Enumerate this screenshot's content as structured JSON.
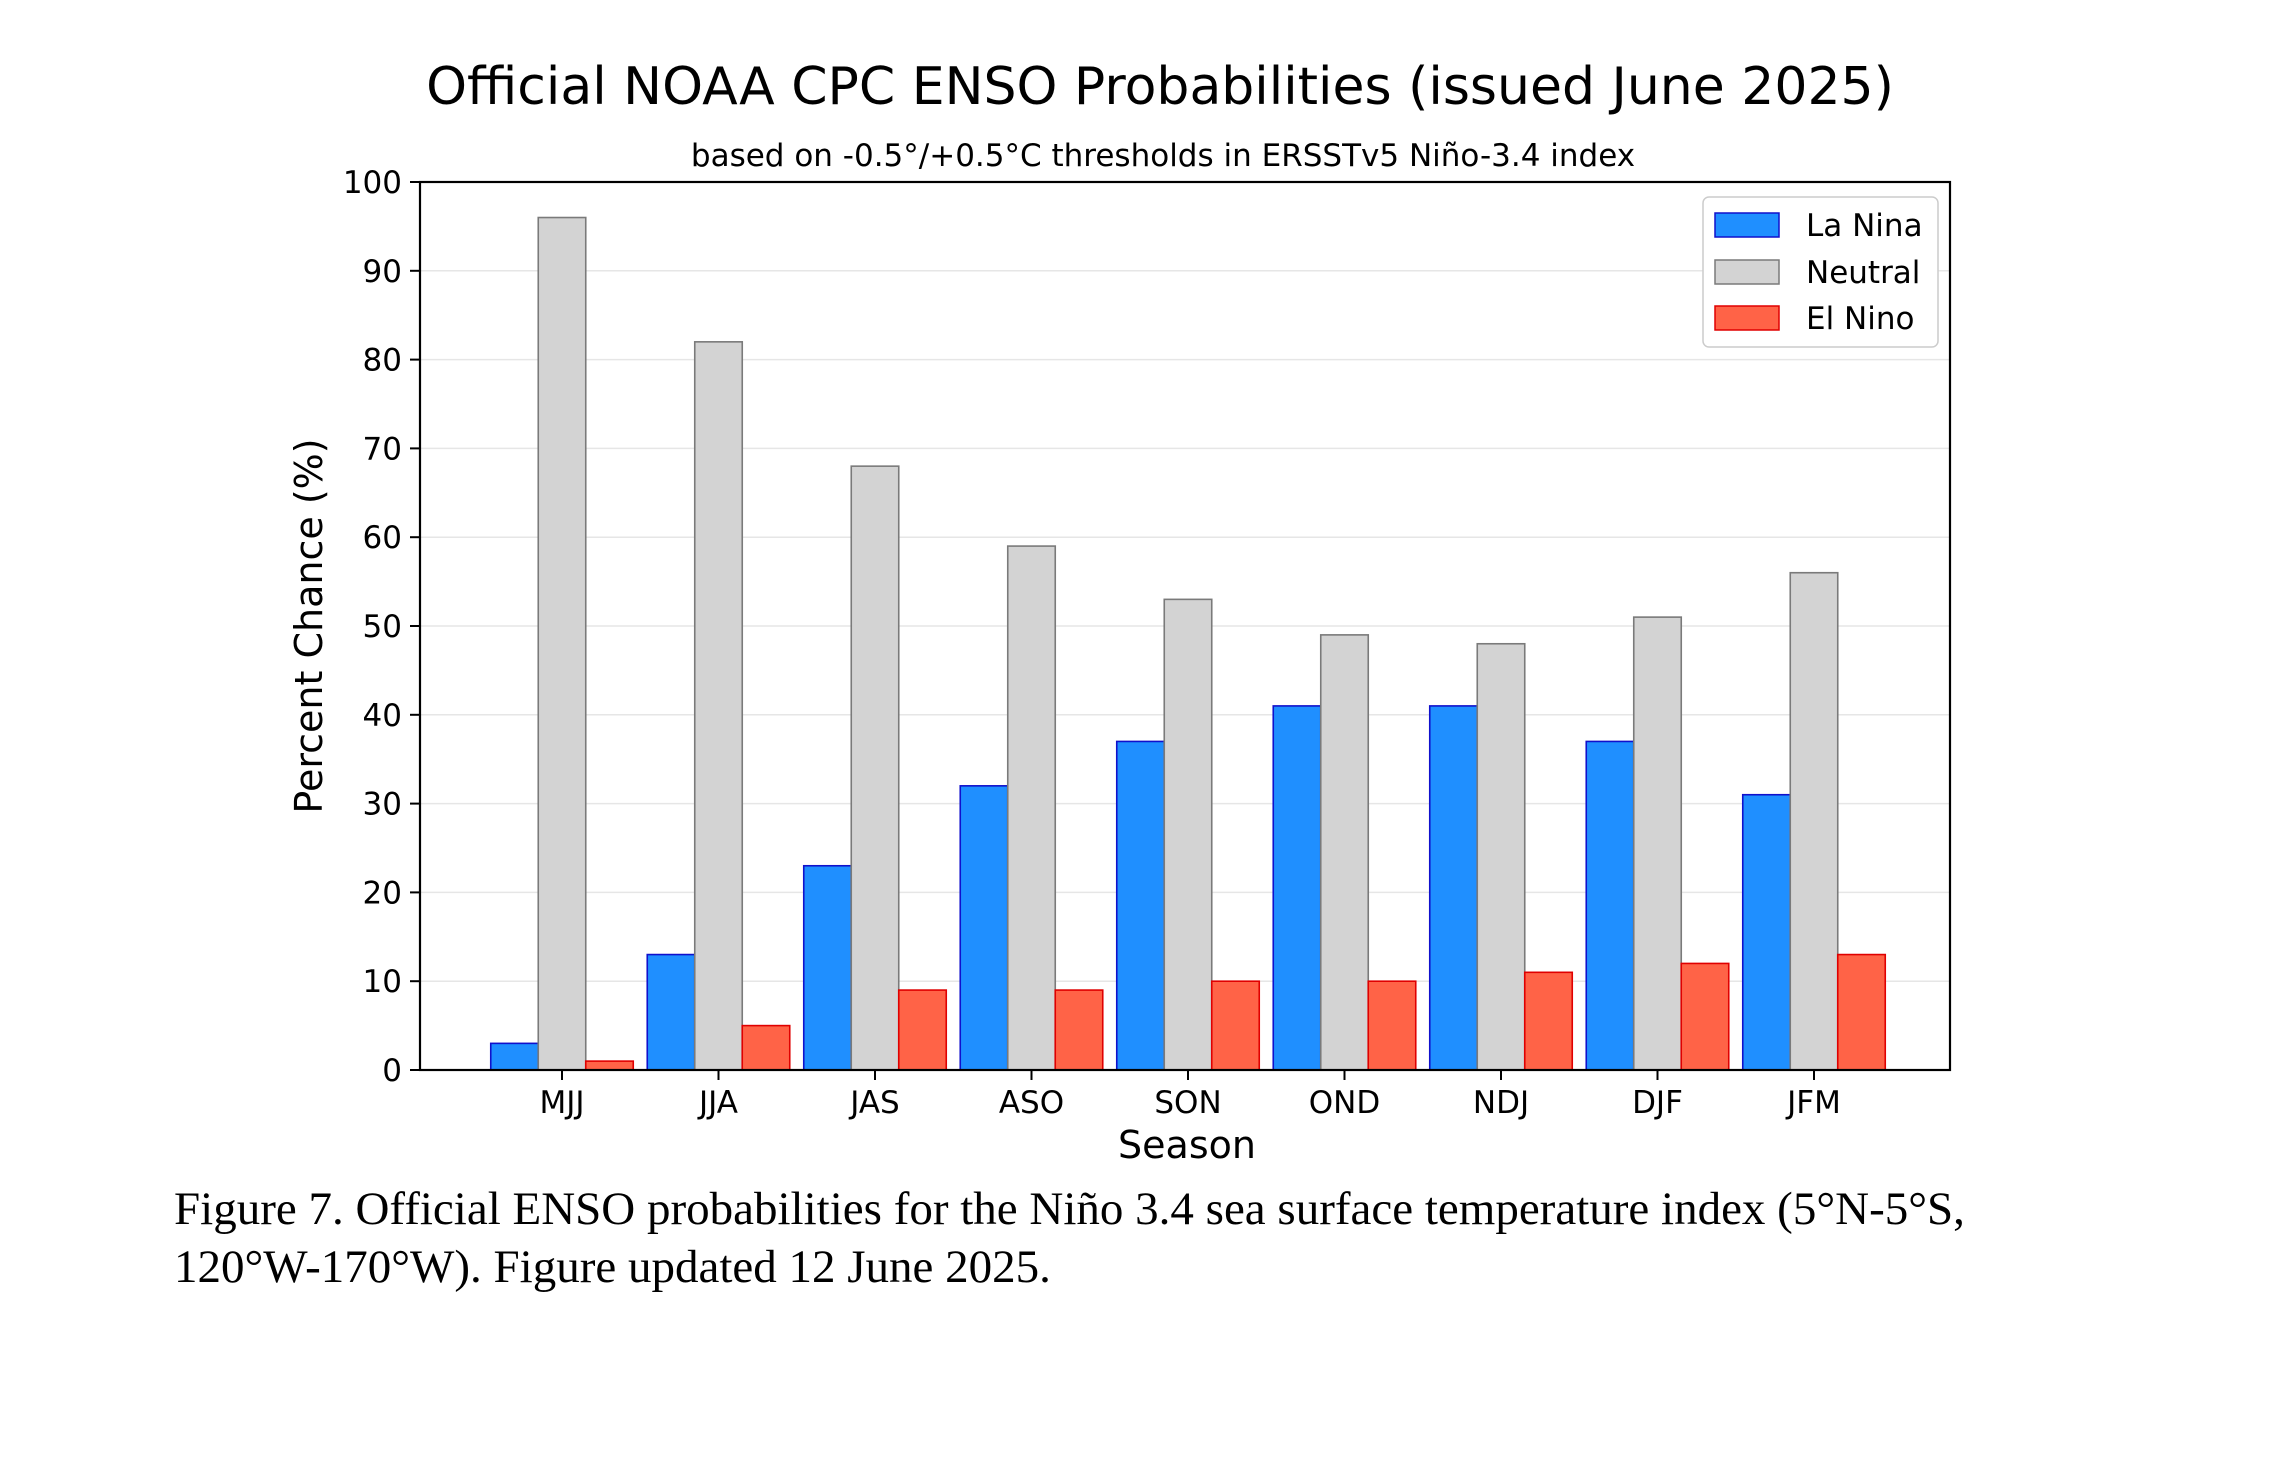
{
  "chart_data": {
    "type": "bar",
    "title": "Official NOAA CPC ENSO Probabilities (issued June 2025)",
    "subtitle": "based on -0.5°/+0.5°C thresholds in ERSSTv5 Niño-3.4 index",
    "xlabel": "Season",
    "ylabel": "Percent Chance (%)",
    "ylim": [
      0,
      100
    ],
    "yticks": [
      "0",
      "10",
      "20",
      "30",
      "40",
      "50",
      "60",
      "70",
      "80",
      "90",
      "100"
    ],
    "grid": true,
    "legend_position": "top-right",
    "categories": [
      "MJJ",
      "JJA",
      "JAS",
      "ASO",
      "SON",
      "OND",
      "NDJ",
      "DJF",
      "JFM"
    ],
    "series": [
      {
        "name": "La Nina",
        "color": "#1f8fff",
        "edge": "#1010cc",
        "values": [
          3,
          13,
          23,
          32,
          37,
          41,
          41,
          37,
          31
        ]
      },
      {
        "name": "Neutral",
        "color": "#d3d3d3",
        "edge": "#7a7a7a",
        "values": [
          96,
          82,
          68,
          59,
          53,
          49,
          48,
          51,
          56
        ]
      },
      {
        "name": "El Nino",
        "color": "#ff6347",
        "edge": "#e00000",
        "values": [
          1,
          5,
          9,
          9,
          10,
          10,
          11,
          12,
          13
        ]
      }
    ]
  },
  "caption": {
    "line1": "Figure 7. Official ENSO probabilities for the Niño 3.4 sea surface temperature index (5°N-5°S,",
    "line2": "120°W-170°W). Figure updated 12 June 2025."
  }
}
